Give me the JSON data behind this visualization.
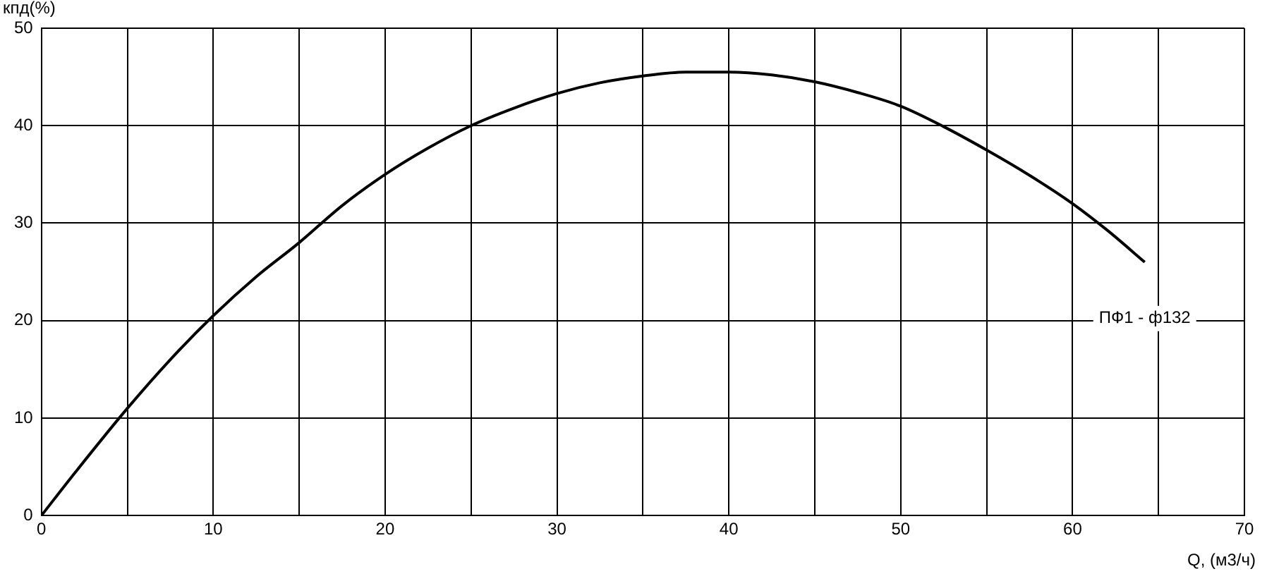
{
  "chart_data": {
    "type": "line",
    "xlabel": "Q, (м3/ч)",
    "ylabel": "кпд(%)",
    "series": [
      {
        "name": "ПФ1 - ф132",
        "color": "#000000",
        "x": [
          0,
          2,
          5,
          7.5,
          10,
          12.5,
          15,
          17.5,
          20,
          22.5,
          25,
          27.5,
          30,
          32.5,
          35,
          37.5,
          40,
          42.5,
          45,
          47.5,
          50,
          52.5,
          55,
          57.5,
          60,
          62,
          64.2
        ],
        "values": [
          0,
          4.5,
          11,
          16,
          20.5,
          24.5,
          28,
          31.8,
          35,
          37.7,
          40,
          41.8,
          43.3,
          44.4,
          45.1,
          45.5,
          45.5,
          45.2,
          44.5,
          43.4,
          42,
          39.9,
          37.5,
          34.9,
          32,
          29.3,
          26
        ]
      }
    ],
    "xlim": [
      0,
      70
    ],
    "ylim": [
      0,
      50
    ],
    "xticks": [
      0,
      {
        "value": 5,
        "label": null
      },
      10,
      {
        "value": 15,
        "label": null
      },
      20,
      {
        "value": 25,
        "label": null
      },
      30,
      {
        "value": 35,
        "label": null
      },
      40,
      {
        "value": 45,
        "label": null
      },
      50,
      {
        "value": 55,
        "label": null
      },
      60,
      {
        "value": 65,
        "label": null
      },
      70
    ],
    "yticks": [
      0,
      10,
      20,
      30,
      40,
      50
    ],
    "grid": true,
    "marker": "none",
    "line_style": "solid",
    "legend": false
  }
}
